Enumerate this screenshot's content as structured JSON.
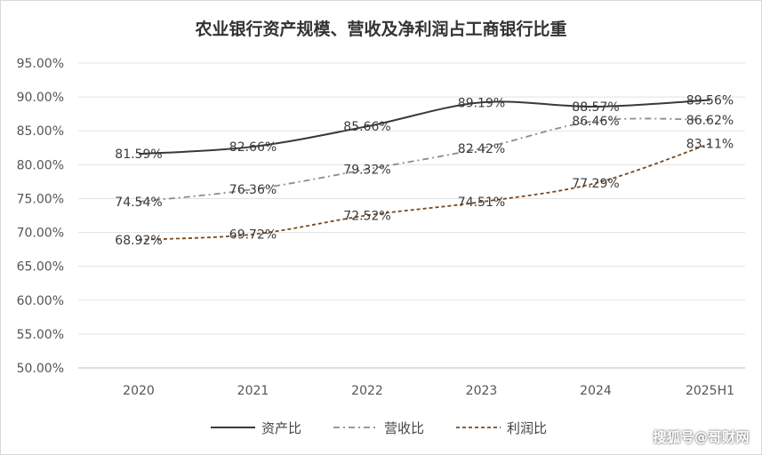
{
  "chart_data": {
    "type": "line",
    "title": "农业银行资产规模、营收及净利润占工商银行比重",
    "categories": [
      "2020",
      "2021",
      "2022",
      "2023",
      "2024",
      "2025H1"
    ],
    "ylim": [
      50,
      95
    ],
    "yticks": [
      50,
      55,
      60,
      65,
      70,
      75,
      80,
      85,
      90,
      95
    ],
    "ytick_labels": [
      "50.00%",
      "55.00%",
      "60.00%",
      "65.00%",
      "70.00%",
      "75.00%",
      "80.00%",
      "85.00%",
      "90.00%",
      "95.00%"
    ],
    "grid": "horizontal",
    "legend": "bottom",
    "series": [
      {
        "name": "资产比",
        "values": [
          81.59,
          82.66,
          85.66,
          89.19,
          88.57,
          89.56
        ],
        "labels": [
          "81.59%",
          "82.66%",
          "85.66%",
          "89.19%",
          "88.57%",
          "89.56%"
        ],
        "color": "#333a42",
        "style": "solid"
      },
      {
        "name": "营收比",
        "values": [
          74.54,
          76.36,
          79.32,
          82.42,
          86.46,
          86.62
        ],
        "labels": [
          "74.54%",
          "76.36%",
          "79.32%",
          "82.42%",
          "86.46%",
          "86.62%"
        ],
        "color": "#8c8c8c",
        "style": "dashdot"
      },
      {
        "name": "利润比",
        "values": [
          68.92,
          69.72,
          72.52,
          74.51,
          77.29,
          83.11
        ],
        "labels": [
          "68.92%",
          "69.72%",
          "72.52%",
          "74.51%",
          "77.29%",
          "83.11%"
        ],
        "color": "#7a4a1e",
        "style": "dashed"
      }
    ]
  },
  "watermark": "搜狐号@哥财网"
}
